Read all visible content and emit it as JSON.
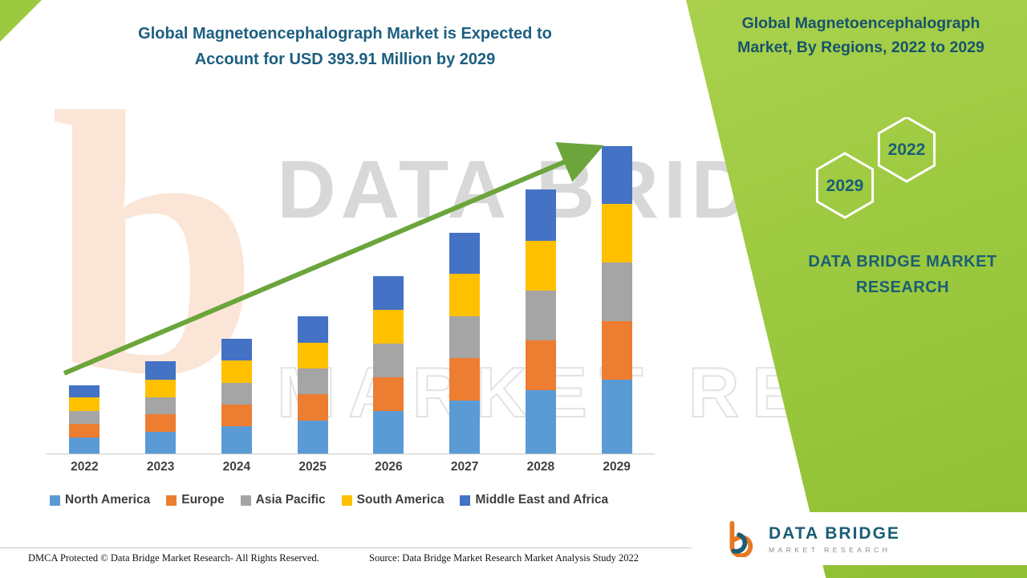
{
  "header": {
    "left_title_line1": "Global Magnetoencephalograph Market is Expected to",
    "left_title_line2": "Account for USD 393.91 Million by 2029",
    "panel_title_line1": "Global Magnetoencephalograph",
    "panel_title_line2": "Market, By Regions, 2022 to 2029"
  },
  "panel": {
    "hexagon_back_label": "2022",
    "hexagon_front_label": "2029",
    "brand_line1": "DATA BRIDGE MARKET",
    "brand_line2": "RESEARCH"
  },
  "watermark": {
    "line1": "DATA BRIDGE",
    "line2": "MARKET RESEARCH",
    "glyph": "b"
  },
  "chart_data": {
    "type": "bar",
    "stacked": true,
    "title": "Global Magnetoencephalograph Market, By Regions, 2022 to 2029",
    "categories": [
      "2022",
      "2023",
      "2024",
      "2025",
      "2026",
      "2027",
      "2028",
      "2029"
    ],
    "series": [
      {
        "name": "North America",
        "color": "#5B9BD5",
        "values": [
          21,
          28,
          35,
          42,
          55,
          68,
          81,
          95
        ]
      },
      {
        "name": "Europe",
        "color": "#ED7D31",
        "values": [
          17,
          22,
          28,
          34,
          43,
          54,
          64,
          75
        ]
      },
      {
        "name": "Asia Pacific",
        "color": "#A5A5A5",
        "values": [
          17,
          22,
          28,
          33,
          43,
          54,
          64,
          75
        ]
      },
      {
        "name": "South America",
        "color": "#FFC000",
        "values": [
          17,
          23,
          28,
          33,
          43,
          54,
          64,
          75
        ]
      },
      {
        "name": "Middle East and Africa",
        "color": "#4472C4",
        "values": [
          16,
          23,
          28,
          34,
          43,
          53,
          65,
          73.91
        ]
      }
    ],
    "totals": [
      88,
      118,
      147,
      176,
      227,
      283,
      338,
      393.91
    ],
    "xlabel": "",
    "ylabel": "",
    "ylim": [
      0,
      400
    ],
    "gridlines": false,
    "legend_position": "bottom",
    "annotations": [
      "Upward green trend arrow from 2022 to 2029"
    ]
  },
  "footer": {
    "dmca": "DMCA Protected © Data Bridge Market Research- All Rights Reserved.",
    "source": "Source: Data Bridge Market Research Market Analysis Study 2022"
  },
  "logo": {
    "line1": "DATA BRIDGE",
    "line2": "MARKET RESEARCH"
  },
  "colors": {
    "panel_green": "#9CC93F",
    "arrow_green": "#6BA53B",
    "title_teal": "#1C5F80",
    "brand_teal": "#1B5E75",
    "axis_gray": "#C9C9C9",
    "label_gray": "#404040"
  }
}
